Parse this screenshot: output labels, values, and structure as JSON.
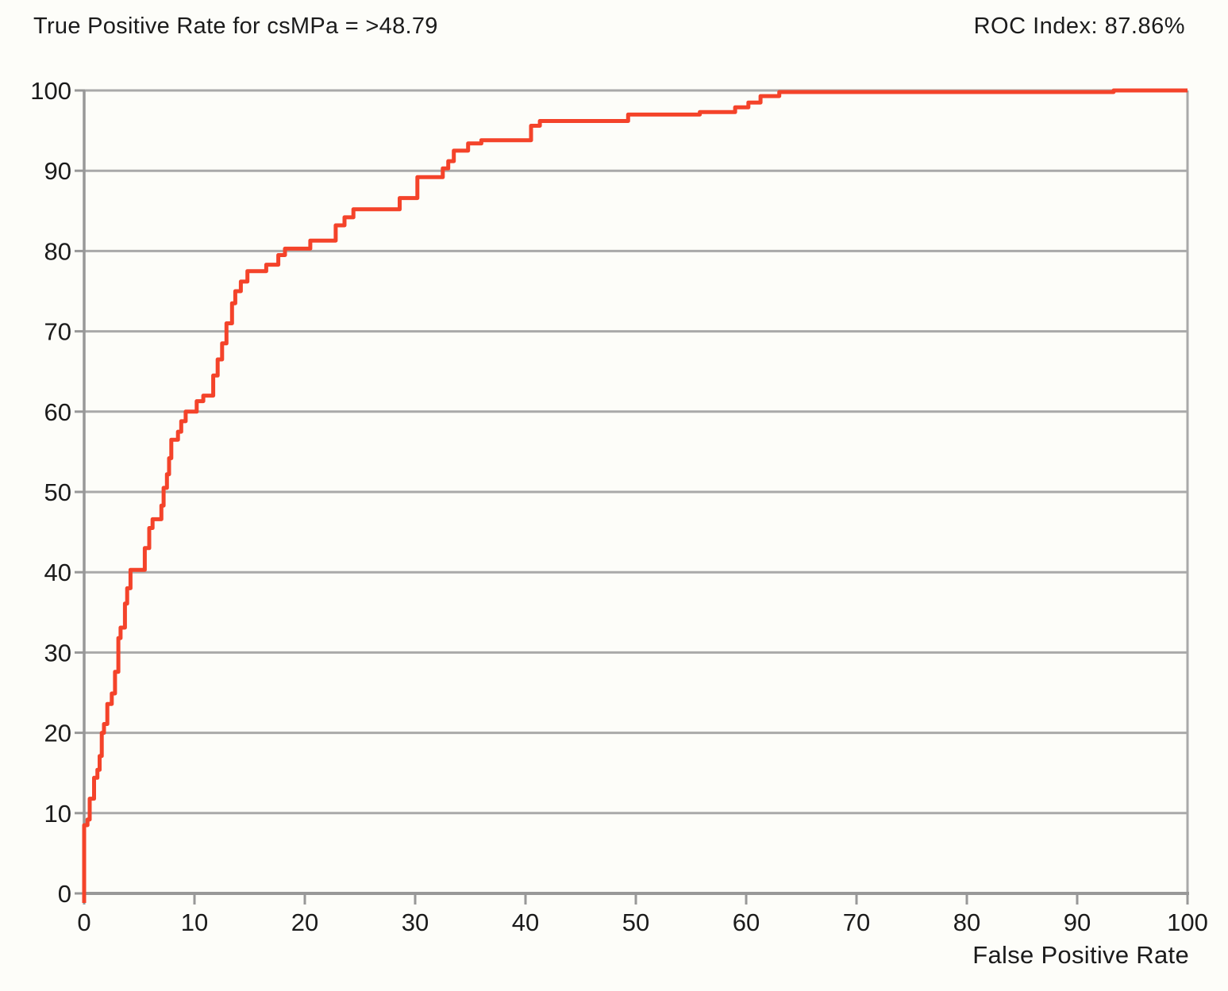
{
  "chart_data": {
    "type": "line",
    "subtype": "roc-step-curve",
    "title": "True Positive Rate for csMPa = >48.79",
    "annotation": "ROC Index: 87.86%",
    "xlabel": "False Positive Rate",
    "ylabel": "",
    "xlim": [
      0,
      100
    ],
    "ylim": [
      0,
      100
    ],
    "x_ticks": [
      0,
      10,
      20,
      30,
      40,
      50,
      60,
      70,
      80,
      90,
      100
    ],
    "y_ticks": [
      0,
      10,
      20,
      30,
      40,
      50,
      60,
      70,
      80,
      90,
      100
    ],
    "grid": "horizontal-only",
    "legend": "none",
    "colors": {
      "curve": "#f4432a",
      "grid": "#a9a9a9",
      "axis": "#989898",
      "text": "#1b1b1b",
      "background": "#fdfdf9"
    },
    "series": [
      {
        "name": "ROC curve (csMPa > 48.79)",
        "color": "#f4432a",
        "points": [
          [
            0,
            0
          ],
          [
            0,
            8.5
          ],
          [
            0.3,
            8.5
          ],
          [
            0.3,
            9.2
          ],
          [
            0.5,
            9.2
          ],
          [
            0.5,
            11.8
          ],
          [
            0.9,
            11.8
          ],
          [
            0.9,
            14.4
          ],
          [
            1.2,
            14.4
          ],
          [
            1.2,
            15.4
          ],
          [
            1.4,
            15.4
          ],
          [
            1.4,
            17.1
          ],
          [
            1.6,
            17.1
          ],
          [
            1.6,
            20
          ],
          [
            1.8,
            20
          ],
          [
            1.8,
            21.1
          ],
          [
            2.1,
            21.1
          ],
          [
            2.1,
            23.6
          ],
          [
            2.5,
            23.6
          ],
          [
            2.5,
            24.9
          ],
          [
            2.8,
            24.9
          ],
          [
            2.8,
            27.6
          ],
          [
            3.1,
            27.6
          ],
          [
            3.1,
            31.8
          ],
          [
            3.3,
            31.8
          ],
          [
            3.3,
            33.1
          ],
          [
            3.7,
            33.1
          ],
          [
            3.7,
            36.1
          ],
          [
            3.9,
            36.1
          ],
          [
            3.9,
            38
          ],
          [
            4.2,
            38
          ],
          [
            4.2,
            40.3
          ],
          [
            5.5,
            40.3
          ],
          [
            5.5,
            43
          ],
          [
            5.9,
            43
          ],
          [
            5.9,
            45.5
          ],
          [
            6.2,
            45.5
          ],
          [
            6.2,
            46.6
          ],
          [
            7.0,
            46.6
          ],
          [
            7.0,
            48.3
          ],
          [
            7.2,
            48.3
          ],
          [
            7.2,
            50.5
          ],
          [
            7.5,
            50.5
          ],
          [
            7.5,
            52.2
          ],
          [
            7.7,
            52.2
          ],
          [
            7.7,
            54.2
          ],
          [
            7.9,
            54.2
          ],
          [
            7.9,
            56.5
          ],
          [
            8.5,
            56.5
          ],
          [
            8.5,
            57.5
          ],
          [
            8.8,
            57.5
          ],
          [
            8.8,
            58.8
          ],
          [
            9.2,
            58.8
          ],
          [
            9.2,
            60
          ],
          [
            10.2,
            60
          ],
          [
            10.2,
            61.3
          ],
          [
            10.8,
            61.3
          ],
          [
            10.8,
            62
          ],
          [
            11.7,
            62
          ],
          [
            11.7,
            64.5
          ],
          [
            12.1,
            64.5
          ],
          [
            12.1,
            66.5
          ],
          [
            12.5,
            66.5
          ],
          [
            12.5,
            68.5
          ],
          [
            12.9,
            68.5
          ],
          [
            12.9,
            71
          ],
          [
            13.4,
            71
          ],
          [
            13.4,
            73.5
          ],
          [
            13.7,
            73.5
          ],
          [
            13.7,
            75
          ],
          [
            14.2,
            75
          ],
          [
            14.2,
            76.2
          ],
          [
            14.8,
            76.2
          ],
          [
            14.8,
            77.5
          ],
          [
            16.5,
            77.5
          ],
          [
            16.5,
            78.3
          ],
          [
            17.6,
            78.3
          ],
          [
            17.6,
            79.5
          ],
          [
            18.2,
            79.5
          ],
          [
            18.2,
            80.3
          ],
          [
            20.5,
            80.3
          ],
          [
            20.5,
            81.3
          ],
          [
            22.8,
            81.3
          ],
          [
            22.8,
            83.2
          ],
          [
            23.6,
            83.2
          ],
          [
            23.6,
            84.2
          ],
          [
            24.4,
            84.2
          ],
          [
            24.4,
            85.2
          ],
          [
            28.6,
            85.2
          ],
          [
            28.6,
            86.6
          ],
          [
            30.2,
            86.6
          ],
          [
            30.2,
            89.2
          ],
          [
            32.5,
            89.2
          ],
          [
            32.5,
            90.3
          ],
          [
            33.0,
            90.3
          ],
          [
            33.0,
            91.2
          ],
          [
            33.5,
            91.2
          ],
          [
            33.5,
            92.5
          ],
          [
            34.8,
            92.5
          ],
          [
            34.8,
            93.4
          ],
          [
            36.0,
            93.4
          ],
          [
            36.0,
            93.8
          ],
          [
            40.5,
            93.8
          ],
          [
            40.5,
            95.6
          ],
          [
            41.3,
            95.6
          ],
          [
            41.3,
            96.2
          ],
          [
            49.3,
            96.2
          ],
          [
            49.3,
            97.0
          ],
          [
            55.8,
            97.0
          ],
          [
            55.8,
            97.3
          ],
          [
            59.0,
            97.3
          ],
          [
            59.0,
            97.9
          ],
          [
            60.2,
            97.9
          ],
          [
            60.2,
            98.5
          ],
          [
            61.3,
            98.5
          ],
          [
            61.3,
            99.3
          ],
          [
            63.0,
            99.3
          ],
          [
            63.0,
            99.8
          ],
          [
            93.3,
            99.8
          ],
          [
            93.3,
            100
          ],
          [
            100,
            100
          ]
        ]
      }
    ]
  }
}
